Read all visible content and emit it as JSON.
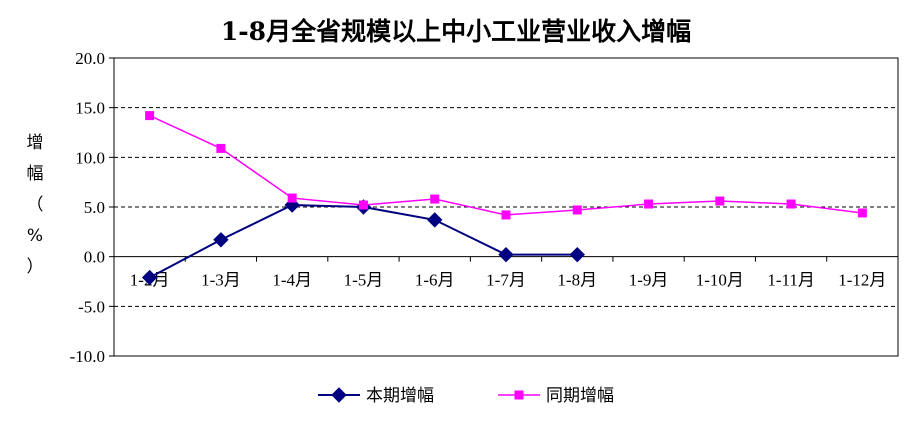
{
  "chart_data": {
    "type": "line",
    "title": "1-8月全省规模以上中小工业营业收入增幅",
    "ylabel_chars": [
      "增",
      "幅",
      "（",
      "%",
      "）"
    ],
    "categories": [
      "1-2月",
      "1-3月",
      "1-4月",
      "1-5月",
      "1-6月",
      "1-7月",
      "1-8月",
      "1-9月",
      "1-10月",
      "1-11月",
      "1-12月"
    ],
    "y_tick_labels": [
      "20.0",
      "15.0",
      "10.0",
      "5.0",
      "0.0",
      "-5.0",
      "-10.0"
    ],
    "ylim": [
      -10,
      20
    ],
    "y_step": 5,
    "dashed_gridlines": [
      15,
      10,
      5,
      -5
    ],
    "legend_position": "bottom",
    "series": [
      {
        "name": "本期增幅",
        "color": "#000080",
        "marker": "diamond",
        "values": [
          -2.1,
          1.7,
          5.2,
          5.0,
          3.7,
          0.2,
          0.2,
          null,
          null,
          null,
          null
        ]
      },
      {
        "name": "同期增幅",
        "color": "#ff00ff",
        "marker": "square",
        "values": [
          14.2,
          10.9,
          5.9,
          5.2,
          5.8,
          4.2,
          4.7,
          5.3,
          5.6,
          5.3,
          4.4
        ]
      }
    ]
  }
}
